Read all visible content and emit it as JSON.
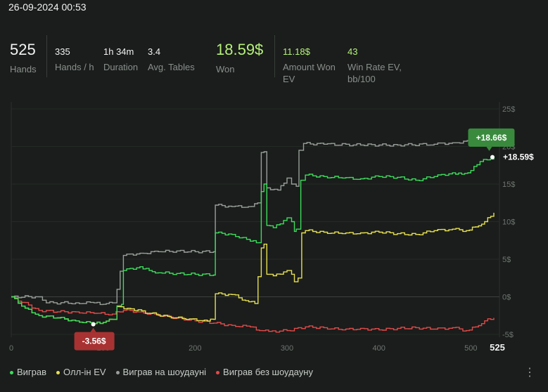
{
  "header": {
    "datetime": "26-09-2024 00:53"
  },
  "stats": [
    {
      "value": "525",
      "label": "Hands"
    },
    {
      "value": "335",
      "label": "Hands / h"
    },
    {
      "value": "1h 34m",
      "label": "Duration"
    },
    {
      "value": "3.4",
      "label": "Avg. Tables"
    },
    {
      "value": "18.59$",
      "label": "Won"
    },
    {
      "value": "11.18$",
      "label": "Amount Won EV"
    },
    {
      "value": "43",
      "label": "Win Rate EV, bb/100"
    }
  ],
  "chart_data": {
    "type": "line",
    "x_ticks": [
      "0",
      "100",
      "200",
      "300",
      "400",
      "500",
      "525"
    ],
    "y_ticks": [
      "25$",
      "20$",
      "15$",
      "10$",
      "5$",
      "0$",
      "-5$"
    ],
    "xlim": [
      0,
      525
    ],
    "ylim": [
      -5,
      25
    ],
    "grid": true,
    "legend_position": "bottom-left",
    "series": [
      {
        "name": "Виграв",
        "color": "#3ddc5c",
        "points": [
          [
            0,
            0
          ],
          [
            15,
            -1.5
          ],
          [
            30,
            -2.5
          ],
          [
            50,
            -2.8
          ],
          [
            70,
            -3.2
          ],
          [
            90,
            -3.56
          ],
          [
            100,
            -3.4
          ],
          [
            110,
            -3.0
          ],
          [
            115,
            -1.2
          ],
          [
            120,
            -1.0
          ],
          [
            122,
            3.5
          ],
          [
            140,
            4.0
          ],
          [
            150,
            3.5
          ],
          [
            160,
            3.2
          ],
          [
            180,
            3.1
          ],
          [
            200,
            3.0
          ],
          [
            220,
            2.9
          ],
          [
            222,
            8.5
          ],
          [
            240,
            8.3
          ],
          [
            260,
            7.4
          ],
          [
            270,
            7.2
          ],
          [
            272,
            14.0
          ],
          [
            275,
            15.0
          ],
          [
            278,
            9.5
          ],
          [
            285,
            9.2
          ],
          [
            300,
            10.5
          ],
          [
            305,
            10.0
          ],
          [
            308,
            8.7
          ],
          [
            310,
            9.0
          ],
          [
            315,
            15.5
          ],
          [
            320,
            16.2
          ],
          [
            340,
            16.0
          ],
          [
            360,
            15.8
          ],
          [
            380,
            15.7
          ],
          [
            400,
            16.0
          ],
          [
            420,
            15.9
          ],
          [
            440,
            15.5
          ],
          [
            460,
            16.0
          ],
          [
            480,
            16.5
          ],
          [
            490,
            16.3
          ],
          [
            500,
            16.8
          ],
          [
            510,
            18.0
          ],
          [
            525,
            18.59
          ]
        ]
      },
      {
        "name": "Олл-ін EV",
        "color": "#e8e050",
        "points": [
          [
            0,
            0
          ],
          [
            15,
            -1.5
          ],
          [
            30,
            -2.5
          ],
          [
            50,
            -2.8
          ],
          [
            70,
            -3.2
          ],
          [
            90,
            -3.56
          ],
          [
            100,
            -3.4
          ],
          [
            110,
            -3.0
          ],
          [
            115,
            -1.3
          ],
          [
            130,
            -1.6
          ],
          [
            150,
            -2.2
          ],
          [
            170,
            -2.6
          ],
          [
            190,
            -3.0
          ],
          [
            210,
            -3.1
          ],
          [
            220,
            -3.0
          ],
          [
            222,
            0.4
          ],
          [
            240,
            0.3
          ],
          [
            255,
            -0.5
          ],
          [
            265,
            -0.9
          ],
          [
            272,
            6.5
          ],
          [
            275,
            7.0
          ],
          [
            278,
            3.0
          ],
          [
            285,
            2.8
          ],
          [
            300,
            3.5
          ],
          [
            305,
            3.0
          ],
          [
            308,
            2.0
          ],
          [
            312,
            2.5
          ],
          [
            316,
            8.5
          ],
          [
            320,
            8.8
          ],
          [
            340,
            8.6
          ],
          [
            360,
            8.4
          ],
          [
            380,
            8.5
          ],
          [
            400,
            8.6
          ],
          [
            420,
            8.4
          ],
          [
            440,
            8.3
          ],
          [
            460,
            8.8
          ],
          [
            480,
            9.0
          ],
          [
            495,
            8.8
          ],
          [
            505,
            9.3
          ],
          [
            515,
            10.0
          ],
          [
            525,
            11.18
          ]
        ]
      },
      {
        "name": "Виграв на шоудауні",
        "color": "#9a9e9b",
        "points": [
          [
            0,
            0
          ],
          [
            30,
            0
          ],
          [
            38,
            -0.8
          ],
          [
            70,
            -0.8
          ],
          [
            90,
            -0.8
          ],
          [
            100,
            -1.0
          ],
          [
            110,
            -0.8
          ],
          [
            115,
            1.0
          ],
          [
            122,
            5.5
          ],
          [
            140,
            5.8
          ],
          [
            160,
            6.0
          ],
          [
            180,
            6.1
          ],
          [
            200,
            6.0
          ],
          [
            220,
            6.0
          ],
          [
            222,
            12.2
          ],
          [
            240,
            12.0
          ],
          [
            258,
            12.0
          ],
          [
            268,
            12.5
          ],
          [
            272,
            19.2
          ],
          [
            275,
            19.3
          ],
          [
            278,
            14.5
          ],
          [
            290,
            14.2
          ],
          [
            300,
            15.8
          ],
          [
            305,
            15.0
          ],
          [
            310,
            14.7
          ],
          [
            313,
            19.5
          ],
          [
            318,
            20.4
          ],
          [
            340,
            20.3
          ],
          [
            380,
            20.2
          ],
          [
            420,
            20.2
          ],
          [
            460,
            20.3
          ],
          [
            480,
            20.5
          ],
          [
            500,
            20.7
          ],
          [
            525,
            20.9
          ]
        ]
      },
      {
        "name": "Виграв без шоудауну",
        "color": "#e24a4a",
        "points": [
          [
            0,
            0
          ],
          [
            30,
            -1.8
          ],
          [
            50,
            -2.0
          ],
          [
            70,
            -2.0
          ],
          [
            90,
            -2.2
          ],
          [
            110,
            -2.3
          ],
          [
            122,
            -1.8
          ],
          [
            140,
            -2.0
          ],
          [
            160,
            -2.5
          ],
          [
            180,
            -2.8
          ],
          [
            200,
            -3.2
          ],
          [
            220,
            -3.5
          ],
          [
            240,
            -3.8
          ],
          [
            260,
            -4.0
          ],
          [
            270,
            -4.5
          ],
          [
            280,
            -4.6
          ],
          [
            300,
            -4.5
          ],
          [
            320,
            -4.0
          ],
          [
            340,
            -4.1
          ],
          [
            360,
            -4.4
          ],
          [
            380,
            -4.2
          ],
          [
            400,
            -4.4
          ],
          [
            420,
            -4.2
          ],
          [
            440,
            -4.1
          ],
          [
            460,
            -4.3
          ],
          [
            480,
            -4.1
          ],
          [
            495,
            -4.5
          ],
          [
            505,
            -4.0
          ],
          [
            515,
            -3.2
          ],
          [
            525,
            -2.8
          ]
        ]
      }
    ],
    "annotations": [
      {
        "text": "+18.66$",
        "x": 520,
        "y": 18.66,
        "color": "#3a8a3e"
      },
      {
        "text": "+18.59$",
        "x": 525,
        "y": 18.59
      },
      {
        "text": "-3.56$",
        "x": 90,
        "y": -3.56,
        "color": "#a83232"
      }
    ]
  },
  "legend": [
    {
      "label": "Виграв",
      "color": "#3ddc5c"
    },
    {
      "label": "Олл-ін EV",
      "color": "#e8e050"
    },
    {
      "label": "Виграв на шоудауні",
      "color": "#9a9e9b"
    },
    {
      "label": "Виграв без шоудауну",
      "color": "#e24a4a"
    }
  ],
  "menu_icon": "more-vertical-icon"
}
